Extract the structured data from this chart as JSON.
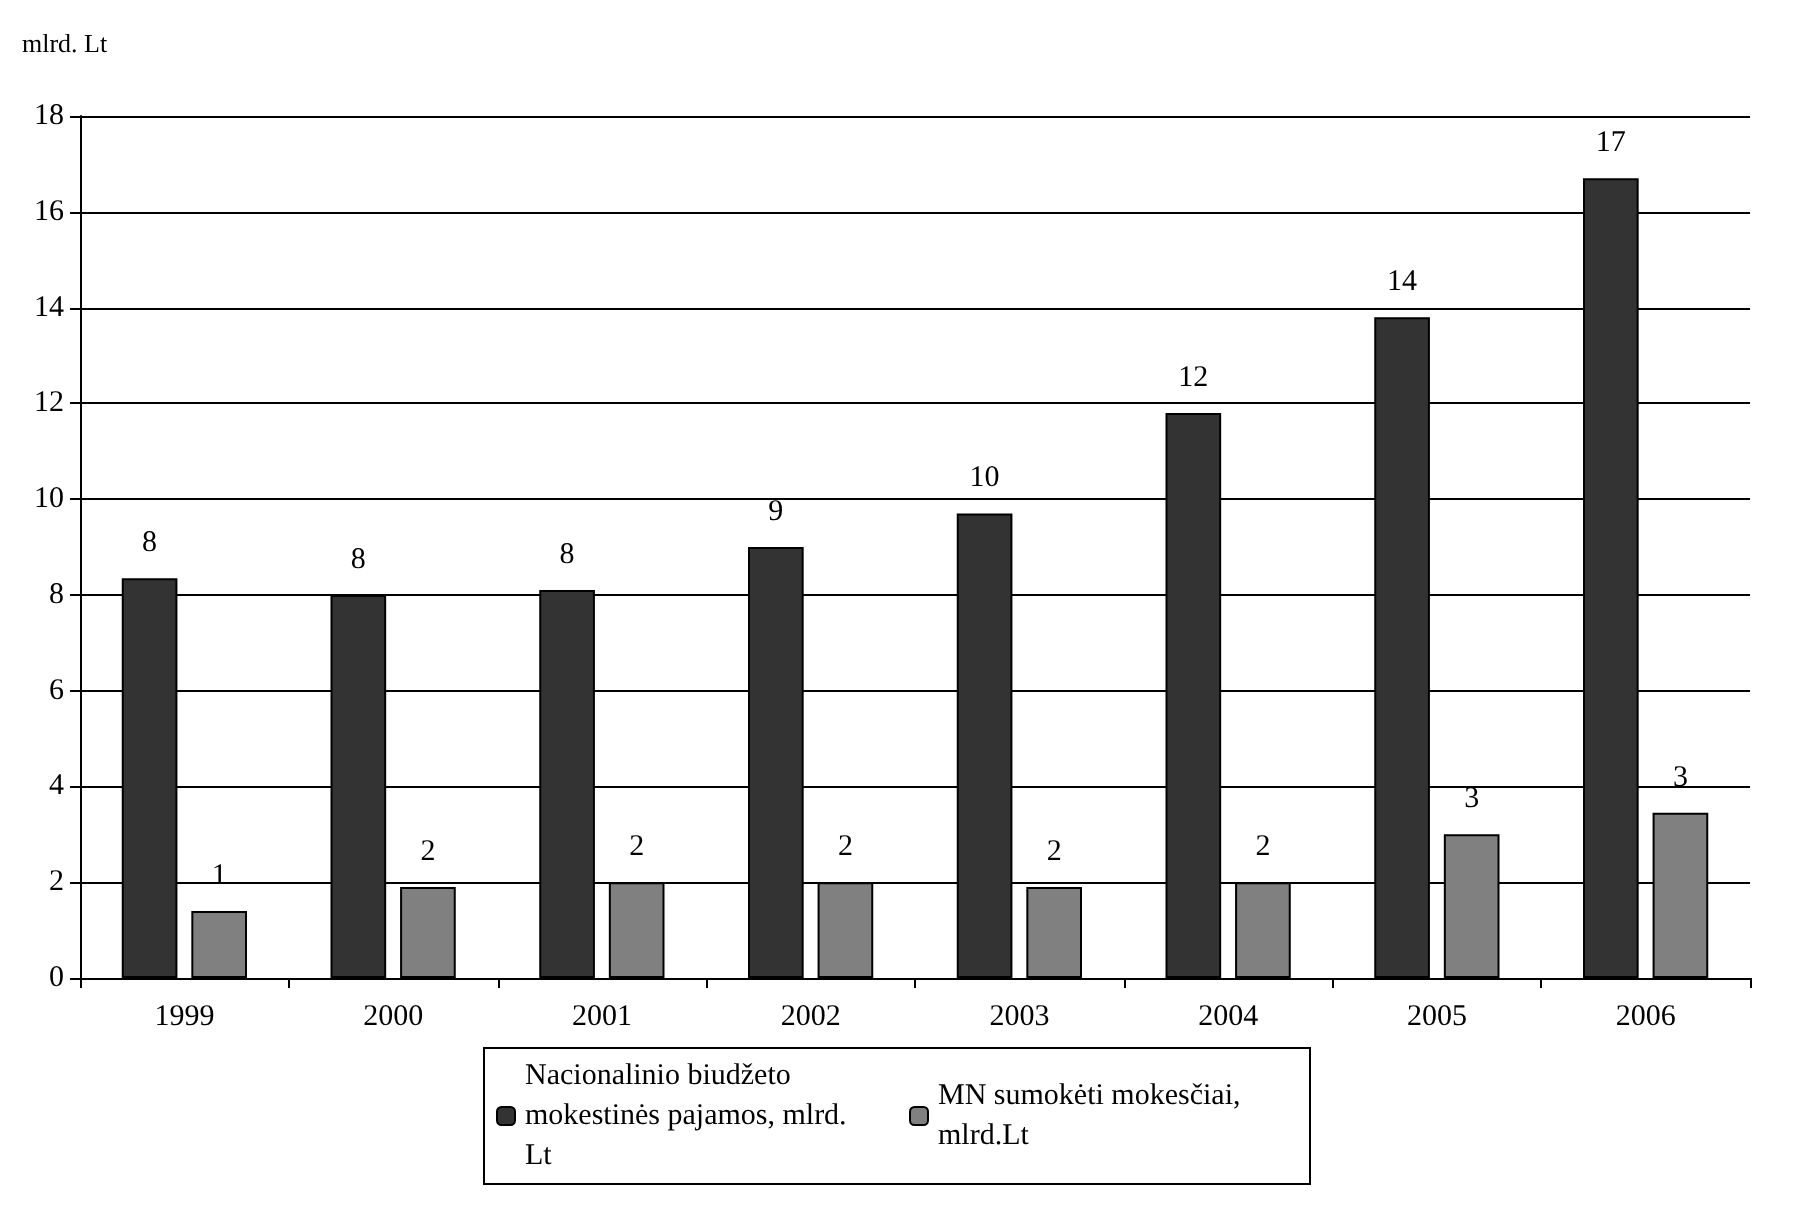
{
  "chart_data": {
    "type": "bar",
    "ylabel": "mlrd. Lt",
    "categories": [
      "1999",
      "2000",
      "2001",
      "2002",
      "2003",
      "2004",
      "2005",
      "2006"
    ],
    "series": [
      {
        "name": "Nacionalinio biudžeto mokestinės pajamos, mlrd. Lt",
        "color": "#333333",
        "values": [
          8.35,
          8.0,
          8.1,
          9.0,
          9.7,
          11.8,
          13.8,
          16.7
        ],
        "value_labels": [
          "8",
          "8",
          "8",
          "9",
          "10",
          "12",
          "14",
          "17"
        ]
      },
      {
        "name": "MN sumokėti mokesčiai, mlrd.Lt",
        "color": "#808080",
        "values": [
          1.4,
          1.9,
          2.0,
          2.0,
          1.9,
          2.0,
          3.0,
          3.45
        ],
        "value_labels": [
          "1",
          "2",
          "2",
          "2",
          "2",
          "2",
          "3",
          "3"
        ]
      }
    ],
    "ylim": [
      0,
      18
    ],
    "yticks": [
      0,
      2,
      4,
      6,
      8,
      10,
      12,
      14,
      16,
      18
    ],
    "grid": "y",
    "legend": "bottom"
  }
}
